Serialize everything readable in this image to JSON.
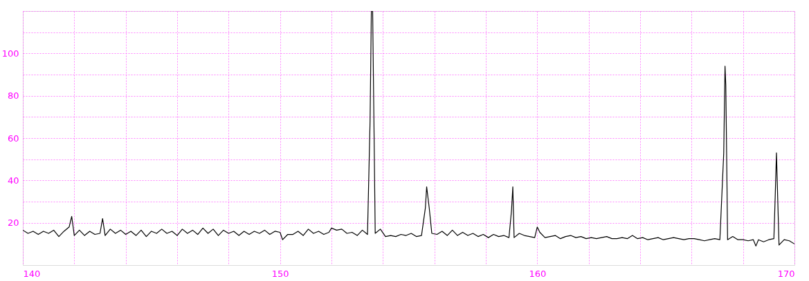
{
  "chart_data": {
    "type": "line",
    "color": "#000000",
    "grid": true,
    "xlim": [
      140,
      170
    ],
    "ylim": [
      0,
      120
    ],
    "xticks": [
      140,
      {
        "value": 142,
        "label": null
      },
      {
        "value": 144,
        "label": null
      },
      {
        "value": 146,
        "label": null
      },
      {
        "value": 148,
        "label": null
      },
      150,
      {
        "value": 152,
        "label": null
      },
      {
        "value": 154,
        "label": null
      },
      {
        "value": 156,
        "label": null
      },
      {
        "value": 158,
        "label": null
      },
      160,
      {
        "value": 162,
        "label": null
      },
      {
        "value": 164,
        "label": null
      },
      {
        "value": 166,
        "label": null
      },
      {
        "value": 168,
        "label": null
      },
      170
    ],
    "yticks": [
      20,
      {
        "value": 30,
        "label": null
      },
      40,
      {
        "value": 50,
        "label": null
      },
      60,
      {
        "value": 70,
        "label": null
      },
      80,
      {
        "value": 90,
        "label": null
      },
      100,
      {
        "value": 110,
        "label": null
      },
      {
        "value": 120,
        "label": null
      }
    ],
    "x": [
      140.0,
      140.2,
      140.4,
      140.6,
      140.8,
      141.0,
      141.2,
      141.4,
      141.6,
      141.8,
      141.9,
      142.0,
      142.2,
      142.4,
      142.6,
      142.8,
      143.0,
      143.1,
      143.2,
      143.4,
      143.6,
      143.8,
      144.0,
      144.2,
      144.4,
      144.6,
      144.8,
      145.0,
      145.2,
      145.4,
      145.6,
      145.8,
      146.0,
      146.2,
      146.4,
      146.6,
      146.8,
      147.0,
      147.2,
      147.4,
      147.6,
      147.8,
      148.0,
      148.2,
      148.4,
      148.6,
      148.8,
      149.0,
      149.2,
      149.4,
      149.6,
      149.8,
      150.0,
      150.1,
      150.3,
      150.5,
      150.7,
      150.9,
      151.1,
      151.3,
      151.5,
      151.7,
      151.9,
      152.0,
      152.2,
      152.4,
      152.6,
      152.8,
      153.0,
      153.2,
      153.4,
      153.5,
      153.55,
      153.6,
      153.65,
      153.7,
      153.9,
      154.1,
      154.3,
      154.5,
      154.7,
      154.9,
      155.1,
      155.3,
      155.5,
      155.65,
      155.7,
      155.8,
      155.9,
      156.1,
      156.3,
      156.5,
      156.7,
      156.9,
      157.1,
      157.3,
      157.5,
      157.7,
      157.9,
      158.1,
      158.3,
      158.5,
      158.7,
      158.9,
      159.0,
      159.05,
      159.1,
      159.3,
      159.5,
      159.7,
      159.9,
      160.0,
      160.1,
      160.3,
      160.5,
      160.7,
      160.9,
      161.1,
      161.3,
      161.5,
      161.7,
      161.9,
      162.1,
      162.3,
      162.5,
      162.7,
      162.9,
      163.1,
      163.3,
      163.5,
      163.7,
      163.9,
      164.1,
      164.3,
      164.5,
      164.7,
      164.9,
      165.1,
      165.3,
      165.5,
      165.7,
      165.9,
      166.1,
      166.3,
      166.5,
      166.7,
      166.9,
      167.1,
      167.25,
      167.3,
      167.33,
      167.37,
      167.4,
      167.6,
      167.8,
      168.0,
      168.2,
      168.4,
      168.5,
      168.6,
      168.8,
      169.0,
      169.2,
      169.25,
      169.3,
      169.35,
      169.4,
      169.6,
      169.8,
      170.0
    ],
    "values": [
      16.5,
      15,
      16,
      14.5,
      16,
      15,
      16.5,
      13.5,
      16,
      18,
      23,
      14,
      16.5,
      14,
      16,
      14.5,
      15,
      22,
      14,
      17,
      15,
      16.5,
      14.5,
      16,
      14,
      16.5,
      13.5,
      16,
      15,
      17,
      15,
      16,
      14,
      17,
      15,
      16.5,
      14.5,
      17.5,
      15,
      17,
      14,
      16.5,
      15,
      16,
      14,
      16,
      14.5,
      16,
      15,
      16.5,
      14.5,
      16,
      15.5,
      12,
      14.5,
      14.5,
      16,
      14,
      17,
      15,
      16,
      14.5,
      15.5,
      17.5,
      16.5,
      17,
      15,
      15.5,
      14,
      16.5,
      14.5,
      68,
      120,
      120,
      68,
      15,
      17,
      13.5,
      14,
      13.5,
      14.5,
      14,
      15,
      13.5,
      14,
      27,
      37,
      27,
      15,
      14.5,
      16,
      14,
      16.5,
      14,
      15.5,
      14,
      15,
      13.5,
      14.5,
      13,
      14.5,
      13.5,
      14,
      13,
      26,
      37,
      13,
      15,
      14,
      13.5,
      13,
      18,
      15.5,
      13,
      13.5,
      14,
      12.5,
      13.5,
      14,
      13,
      13.5,
      12.5,
      13,
      12.5,
      13,
      13.5,
      12.5,
      12.5,
      13,
      12.5,
      14,
      12.5,
      13,
      12,
      12.5,
      13,
      12,
      12.5,
      13,
      12.5,
      12,
      12.5,
      12.5,
      12,
      11.5,
      12,
      12.5,
      12,
      53,
      94,
      85,
      45,
      12,
      13.5,
      12,
      12,
      11.5,
      12,
      9,
      12,
      11,
      12,
      12.5,
      32,
      53,
      31,
      9.5,
      12,
      11.5,
      10
    ]
  }
}
